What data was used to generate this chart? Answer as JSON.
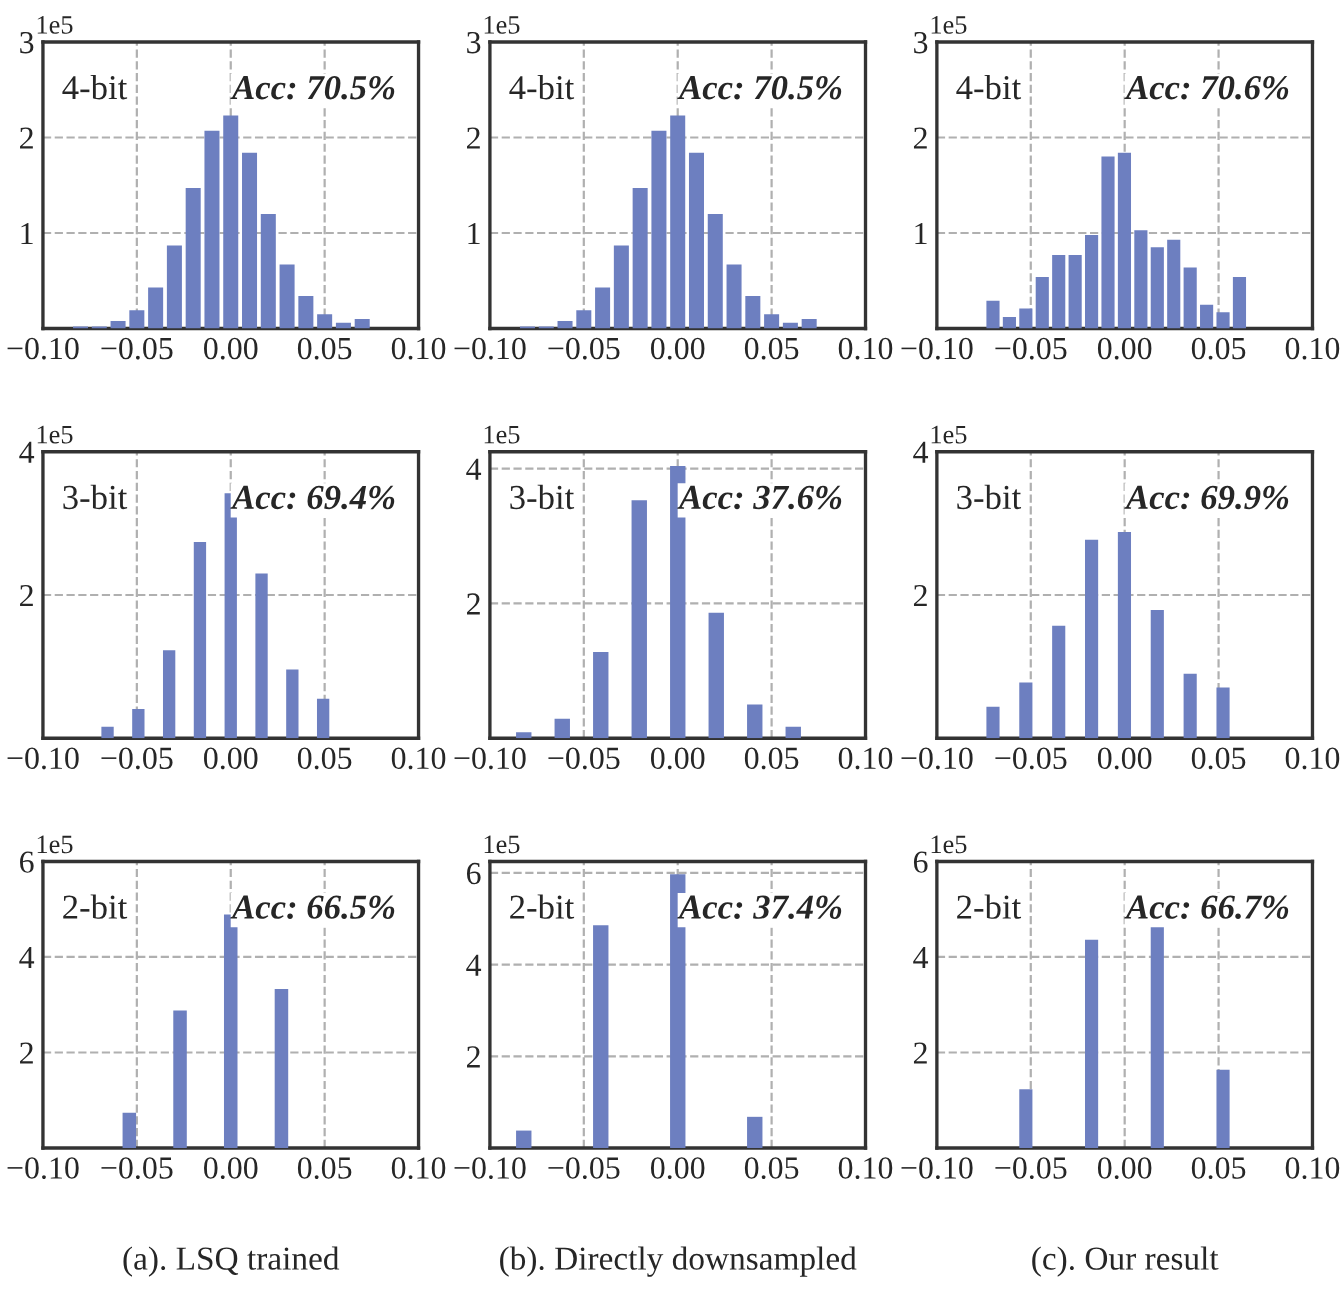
{
  "chart_data": [
    {
      "type": "histogram",
      "ylabel": "1e5",
      "annotations": [
        "4-bit",
        "Acc: 70.5%"
      ],
      "color": "#6d7fc0",
      "bins": [
        -0.085,
        -0.075,
        -0.065,
        -0.055,
        -0.045,
        -0.035,
        -0.025,
        -0.015,
        -0.005,
        0.005,
        0.015,
        0.025,
        0.035,
        0.045,
        0.055,
        0.065,
        0.075
      ],
      "values": [
        0.02,
        0.02,
        0.08,
        0.19,
        0.43,
        0.87,
        1.47,
        2.07,
        2.23,
        1.84,
        1.2,
        0.67,
        0.34,
        0.15,
        0.06,
        0.1
      ],
      "xlim": [
        -0.1,
        0.1
      ],
      "xticks": [
        {
          "value": -0.1,
          "label": "−0.10"
        },
        {
          "value": -0.05,
          "label": "−0.05"
        },
        {
          "value": 0,
          "label": "0.00"
        },
        {
          "value": 0.05,
          "label": "0.05"
        },
        {
          "value": 0.1,
          "label": "0.10"
        }
      ],
      "ylim": [
        0,
        3
      ],
      "yticks": [
        1,
        2,
        3
      ],
      "grid": true
    },
    {
      "type": "histogram",
      "ylabel": "1e5",
      "annotations": [
        "4-bit",
        "Acc: 70.5%"
      ],
      "color": "#6d7fc0",
      "bins": [
        -0.085,
        -0.075,
        -0.065,
        -0.055,
        -0.045,
        -0.035,
        -0.025,
        -0.015,
        -0.005,
        0.005,
        0.015,
        0.025,
        0.035,
        0.045,
        0.055,
        0.065,
        0.075
      ],
      "values": [
        0.02,
        0.02,
        0.08,
        0.19,
        0.43,
        0.87,
        1.47,
        2.07,
        2.23,
        1.84,
        1.2,
        0.67,
        0.34,
        0.15,
        0.06,
        0.1
      ],
      "xlim": [
        -0.1,
        0.1
      ],
      "xticks": [
        {
          "value": -0.1,
          "label": "−0.10"
        },
        {
          "value": -0.05,
          "label": "−0.05"
        },
        {
          "value": 0,
          "label": "0.00"
        },
        {
          "value": 0.05,
          "label": "0.05"
        },
        {
          "value": 0.1,
          "label": "0.10"
        }
      ],
      "ylim": [
        0,
        3
      ],
      "yticks": [
        1,
        2,
        3
      ],
      "grid": true
    },
    {
      "type": "histogram",
      "ylabel": "1e5",
      "annotations": [
        "4-bit",
        "Acc: 70.6%"
      ],
      "color": "#6d7fc0",
      "bins": [
        -0.0745,
        -0.06575,
        -0.057,
        -0.04825,
        -0.0395,
        -0.03075,
        -0.022,
        -0.01325,
        -0.0045,
        0.00425,
        0.013,
        0.02175,
        0.0305,
        0.03925,
        0.048,
        0.05675,
        0.0655
      ],
      "values": [
        0.29,
        0.12,
        0.21,
        0.54,
        0.77,
        0.77,
        0.98,
        1.8,
        1.84,
        1.03,
        0.85,
        0.93,
        0.64,
        0.25,
        0.17,
        0.54
      ],
      "xlim": [
        -0.1,
        0.1
      ],
      "xticks": [
        {
          "value": -0.1,
          "label": "−0.10"
        },
        {
          "value": -0.05,
          "label": "−0.05"
        },
        {
          "value": 0,
          "label": "0.00"
        },
        {
          "value": 0.05,
          "label": "0.05"
        },
        {
          "value": 0.1,
          "label": "0.10"
        }
      ],
      "ylim": [
        0,
        3
      ],
      "yticks": [
        1,
        2,
        3
      ],
      "grid": true
    },
    {
      "type": "histogram",
      "ylabel": "1e5",
      "annotations": [
        "3-bit",
        "Acc: 69.4%"
      ],
      "color": "#6d7fc0",
      "bins": [
        -0.0697,
        -0.0615,
        -0.0533,
        -0.0451,
        -0.0369,
        -0.0287,
        -0.0205,
        -0.0123,
        -0.0041,
        0.0041,
        0.0123,
        0.0205,
        0.0287,
        0.0369,
        0.0451,
        0.0533,
        0.0615
      ],
      "values": [
        0.16,
        0,
        0.41,
        0,
        1.23,
        0,
        2.74,
        0,
        3.42,
        0,
        2.3,
        0,
        0.96,
        0,
        0.55,
        0
      ],
      "xlim": [
        -0.1,
        0.1
      ],
      "xticks": [
        {
          "value": -0.1,
          "label": "−0.10"
        },
        {
          "value": -0.05,
          "label": "−0.05"
        },
        {
          "value": 0,
          "label": "0.00"
        },
        {
          "value": 0.05,
          "label": "0.05"
        },
        {
          "value": 0.1,
          "label": "0.10"
        }
      ],
      "ylim": [
        0,
        4
      ],
      "yticks": [
        2,
        4
      ],
      "grid": true
    },
    {
      "type": "histogram",
      "ylabel": "1e5",
      "annotations": [
        "3-bit",
        "Acc: 37.6%"
      ],
      "color": "#6d7fc0",
      "bins": [
        -0.0871,
        -0.07685,
        -0.0666,
        -0.05635,
        -0.0461,
        -0.03585,
        -0.0256,
        -0.01535,
        -0.0051,
        0.00515,
        0.0154,
        0.02565,
        0.0359,
        0.04615,
        0.0564,
        0.06665,
        0.0769
      ],
      "values": [
        0.09,
        0,
        0.29,
        0,
        1.28,
        0,
        3.53,
        0,
        4.04,
        0,
        1.86,
        0,
        0.5,
        0,
        0.17,
        0
      ],
      "xlim": [
        -0.1,
        0.1
      ],
      "xticks": [
        {
          "value": -0.1,
          "label": "−0.10"
        },
        {
          "value": -0.05,
          "label": "−0.05"
        },
        {
          "value": 0,
          "label": "0.00"
        },
        {
          "value": 0.05,
          "label": "0.05"
        },
        {
          "value": 0.1,
          "label": "0.10"
        }
      ],
      "ylim": [
        0,
        4.25
      ],
      "yticks": [
        2,
        4
      ],
      "grid": true
    },
    {
      "type": "histogram",
      "ylabel": "1e5",
      "annotations": [
        "3-bit",
        "Acc: 69.9%"
      ],
      "color": "#6d7fc0",
      "bins": [
        -0.0745,
        -0.06575,
        -0.057,
        -0.04825,
        -0.0395,
        -0.03075,
        -0.022,
        -0.01325,
        -0.0045,
        0.00425,
        0.013,
        0.02175,
        0.0305,
        0.03925,
        0.048,
        0.05675,
        0.0655
      ],
      "values": [
        0.44,
        0,
        0.78,
        0,
        1.57,
        0,
        2.77,
        0,
        2.88,
        0,
        1.79,
        0,
        0.9,
        0,
        0.71,
        0
      ],
      "xlim": [
        -0.1,
        0.1
      ],
      "xticks": [
        {
          "value": -0.1,
          "label": "−0.10"
        },
        {
          "value": -0.05,
          "label": "−0.05"
        },
        {
          "value": 0,
          "label": "0.00"
        },
        {
          "value": 0.05,
          "label": "0.05"
        },
        {
          "value": 0.1,
          "label": "0.10"
        }
      ],
      "ylim": [
        0,
        4
      ],
      "yticks": [
        2,
        4
      ],
      "grid": true
    },
    {
      "type": "histogram",
      "ylabel": "1e5",
      "xlabel": "(a). LSQ trained",
      "annotations": [
        "2-bit",
        "Acc: 66.5%"
      ],
      "color": "#6d7fc0",
      "bins": [
        -0.0585,
        -0.0495,
        -0.0405,
        -0.0315,
        -0.0225,
        -0.0135,
        -0.0045,
        0.0045,
        0.0135,
        0.0225,
        0.0315,
        0.0405,
        0.0495
      ],
      "values": [
        0.74,
        0,
        0,
        2.88,
        0,
        0,
        4.89,
        0,
        0,
        3.33,
        0,
        0
      ],
      "xlim": [
        -0.1,
        0.1
      ],
      "xticks": [
        {
          "value": -0.1,
          "label": "−0.10"
        },
        {
          "value": -0.05,
          "label": "−0.05"
        },
        {
          "value": 0,
          "label": "0.00"
        },
        {
          "value": 0.05,
          "label": "0.05"
        },
        {
          "value": 0.1,
          "label": "0.10"
        }
      ],
      "ylim": [
        0,
        6
      ],
      "yticks": [
        2,
        4,
        6
      ],
      "grid": true
    },
    {
      "type": "histogram",
      "ylabel": "1e5",
      "xlabel": "(b). Directly downsampled",
      "annotations": [
        "2-bit",
        "Acc: 37.4%"
      ],
      "color": "#6d7fc0",
      "bins": [
        -0.0871,
        -0.07685,
        -0.0666,
        -0.05635,
        -0.0461,
        -0.03585,
        -0.0256,
        -0.01535,
        -0.0051,
        0.00515,
        0.0154,
        0.02565,
        0.0359,
        0.04615,
        0.0564,
        0.06665,
        0.0769
      ],
      "values": [
        0.38,
        0,
        0,
        0,
        4.86,
        0,
        0,
        0,
        5.97,
        0,
        0,
        0,
        0.68,
        0,
        0,
        0
      ],
      "xlim": [
        -0.1,
        0.1
      ],
      "xticks": [
        {
          "value": -0.1,
          "label": "−0.10"
        },
        {
          "value": -0.05,
          "label": "−0.05"
        },
        {
          "value": 0,
          "label": "0.00"
        },
        {
          "value": 0.05,
          "label": "0.05"
        },
        {
          "value": 0.1,
          "label": "0.10"
        }
      ],
      "ylim": [
        0,
        6.25
      ],
      "yticks": [
        2,
        4,
        6
      ],
      "grid": true
    },
    {
      "type": "histogram",
      "ylabel": "1e5",
      "xlabel": "(c). Our result",
      "annotations": [
        "2-bit",
        "Acc: 66.7%"
      ],
      "color": "#6d7fc0",
      "bins": [
        -0.0745,
        -0.06575,
        -0.057,
        -0.04825,
        -0.0395,
        -0.03075,
        -0.022,
        -0.01325,
        -0.0045,
        0.00425,
        0.013,
        0.02175,
        0.0305,
        0.03925,
        0.048,
        0.05675,
        0.0655
      ],
      "values": [
        0,
        0,
        1.23,
        0,
        0,
        0,
        4.36,
        0,
        0,
        0,
        4.68,
        0,
        0,
        0,
        1.64,
        0
      ],
      "xlim": [
        -0.1,
        0.1
      ],
      "xticks": [
        {
          "value": -0.1,
          "label": "−0.10"
        },
        {
          "value": -0.05,
          "label": "−0.05"
        },
        {
          "value": 0,
          "label": "0.00"
        },
        {
          "value": 0.05,
          "label": "0.05"
        },
        {
          "value": 0.1,
          "label": "0.10"
        }
      ],
      "ylim": [
        0,
        6
      ],
      "yticks": [
        2,
        4,
        6
      ],
      "grid": true
    }
  ]
}
